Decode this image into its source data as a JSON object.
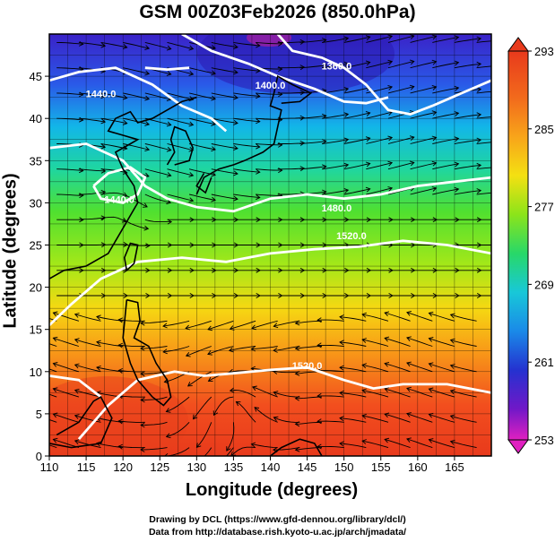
{
  "title": "GSM 00Z03Feb2026 (850.0hPa)",
  "axes": {
    "xlabel": "Longitude (degrees)",
    "ylabel": "Latitude  (degrees)",
    "xticks": [
      "110",
      "115",
      "120",
      "125",
      "130",
      "135",
      "140",
      "145",
      "150",
      "155",
      "160",
      "165"
    ],
    "yticks": [
      "0",
      "5",
      "10",
      "15",
      "20",
      "25",
      "30",
      "35",
      "40",
      "45"
    ],
    "xrange": [
      110,
      170
    ],
    "yrange": [
      0,
      50
    ]
  },
  "colorbar": {
    "ticks": [
      "293",
      "285",
      "277",
      "269",
      "261",
      "253"
    ],
    "range": [
      253,
      293
    ]
  },
  "contour_labels": [
    "1360.0",
    "1400.0",
    "1440.0",
    "1440.0",
    "1480.0",
    "1520.0",
    "1520.0"
  ],
  "credits": {
    "line1": "Drawing by DCL (https://www.gfd-dennou.org/library/dcl/)",
    "line2": "Data from http://database.rish.kyoto-u.ac.jp/arch/jmadata/"
  }
}
